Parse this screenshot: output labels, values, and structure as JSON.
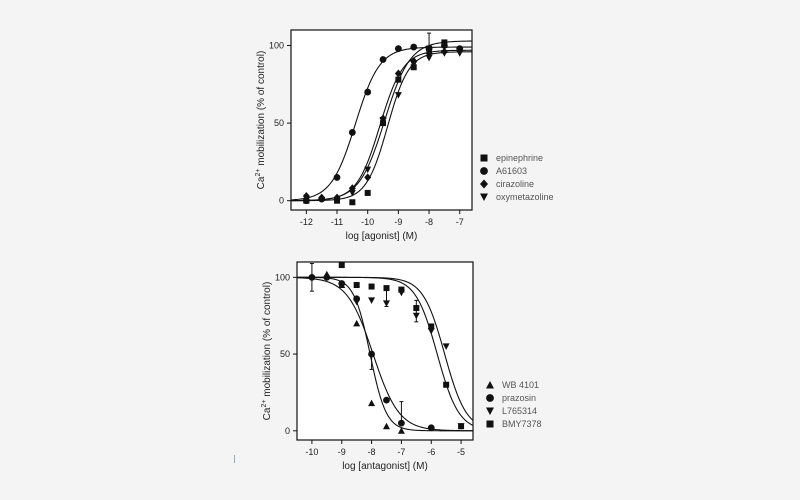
{
  "chart_data": [
    {
      "type": "scatter",
      "xlabel": "log [agonist] (M)",
      "ylabel": "Ca2+ mobilization (% of control)",
      "ylabel_parts": {
        "pre": "Ca",
        "sup": "2+",
        "post": " mobilization (% of control)"
      },
      "xlim": [
        -12.5,
        -6.6
      ],
      "ylim": [
        -6,
        110
      ],
      "xticks": [
        -12,
        -11,
        -10,
        -9,
        -8,
        -7
      ],
      "xticklabels": [
        "-12",
        "-11",
        "-10",
        "-9",
        "-8",
        "-7"
      ],
      "yticks": [
        0,
        50,
        100
      ],
      "yticklabels": [
        "0",
        "50",
        "100"
      ],
      "legend_position": "right",
      "series": [
        {
          "name": "epinephrine",
          "marker": "square",
          "x": [
            -12,
            -11,
            -10.5,
            -10,
            -9.5,
            -9,
            -8.5,
            -8,
            -7.5
          ],
          "y": [
            0,
            0,
            -1,
            5,
            50,
            78,
            86,
            98,
            102
          ],
          "curve": {
            "bottom": 0,
            "top": 103,
            "ec50": -9.45,
            "hill": 1.05
          }
        },
        {
          "name": "A61603",
          "marker": "circle",
          "x": [
            -12,
            -11.5,
            -11,
            -10.5,
            -10,
            -9.5,
            -9,
            -8.5,
            -8,
            -7.5,
            -7
          ],
          "y": [
            0,
            1,
            15,
            44,
            70,
            91,
            98,
            99,
            98,
            100,
            98
          ],
          "curve": {
            "bottom": 0,
            "top": 99,
            "ec50": -10.4,
            "hill": 1.1
          }
        },
        {
          "name": "cirazoline",
          "marker": "diamond",
          "x": [
            -12,
            -11.5,
            -11,
            -10.5,
            -10,
            -9.5,
            -9,
            -8.5,
            -8,
            -7.5
          ],
          "y": [
            3,
            2,
            2,
            8,
            15,
            53,
            82,
            90,
            95,
            96
          ],
          "curve": {
            "bottom": 0,
            "top": 97,
            "ec50": -9.6,
            "hill": 1.15
          }
        },
        {
          "name": "oxymetazoline",
          "marker": "triangle-down",
          "x": [
            -10.5,
            -10,
            -9.5,
            -9,
            -8.5,
            -8,
            -7.5,
            -7
          ],
          "y": [
            5,
            20,
            52,
            68,
            88,
            92,
            95,
            95
          ],
          "curve": {
            "bottom": 0,
            "top": 96,
            "ec50": -9.35,
            "hill": 1.25
          }
        }
      ],
      "error_bars": [
        {
          "x": -8,
          "y": 100,
          "err": 8
        }
      ]
    },
    {
      "type": "scatter",
      "xlabel": "log [antagonist] (M)",
      "ylabel": "Ca2+ mobilization (% of control)",
      "ylabel_parts": {
        "pre": "Ca",
        "sup": "2+",
        "post": " mobilization (% of control)"
      },
      "xlim": [
        -10.5,
        -4.6
      ],
      "ylim": [
        -6,
        110
      ],
      "xticks": [
        -10,
        -9,
        -8,
        -7,
        -6,
        -5
      ],
      "xticklabels": [
        "-10",
        "-9",
        "-8",
        "-7",
        "-6",
        "-5"
      ],
      "yticks": [
        0,
        50,
        100
      ],
      "yticklabels": [
        "0",
        "50",
        "100"
      ],
      "legend_position": "right",
      "series": [
        {
          "name": "WB 4101",
          "marker": "triangle-up",
          "x": [
            -9.5,
            -9,
            -8.5,
            -8,
            -7.5,
            -7
          ],
          "y": [
            102,
            95,
            70,
            18,
            3,
            0
          ],
          "curve": {
            "bottom": 0,
            "top": 100,
            "ec50": -8.05,
            "hill": 1.6
          }
        },
        {
          "name": "prazosin",
          "marker": "circle",
          "x": [
            -10,
            -9.5,
            -9,
            -8.5,
            -8,
            -7.5,
            -7,
            -6
          ],
          "y": [
            100,
            100,
            96,
            86,
            50,
            20,
            5,
            2
          ],
          "curve": {
            "bottom": 0,
            "top": 100,
            "ec50": -7.95,
            "hill": 1.0
          }
        },
        {
          "name": "L765314",
          "marker": "triangle-down",
          "x": [
            -8.5,
            -8,
            -7.5,
            -7,
            -6.5,
            -6,
            -5.5,
            -5
          ],
          "y": [
            84,
            85,
            83,
            90,
            75,
            65,
            55,
            3
          ],
          "curve": {
            "bottom": 0,
            "top": 100,
            "ec50": -5.55,
            "hill": 1.2
          }
        },
        {
          "name": "BMY7378",
          "marker": "square",
          "x": [
            -9,
            -8.5,
            -8,
            -7.5,
            -7,
            -6.5,
            -6,
            -5.5,
            -5
          ],
          "y": [
            108,
            95,
            94,
            93,
            92,
            80,
            68,
            30,
            3
          ],
          "curve": {
            "bottom": 0,
            "top": 100,
            "ec50": -5.8,
            "hill": 1.2
          }
        }
      ],
      "error_bars": [
        {
          "x": -10,
          "y": 100,
          "err": 9
        },
        {
          "x": -7.5,
          "y": 87,
          "err": 6
        },
        {
          "x": -6.5,
          "y": 78,
          "err": 7
        },
        {
          "x": -7,
          "y": 12,
          "err": 7
        },
        {
          "x": -8,
          "y": 45,
          "err": 5
        }
      ]
    }
  ]
}
